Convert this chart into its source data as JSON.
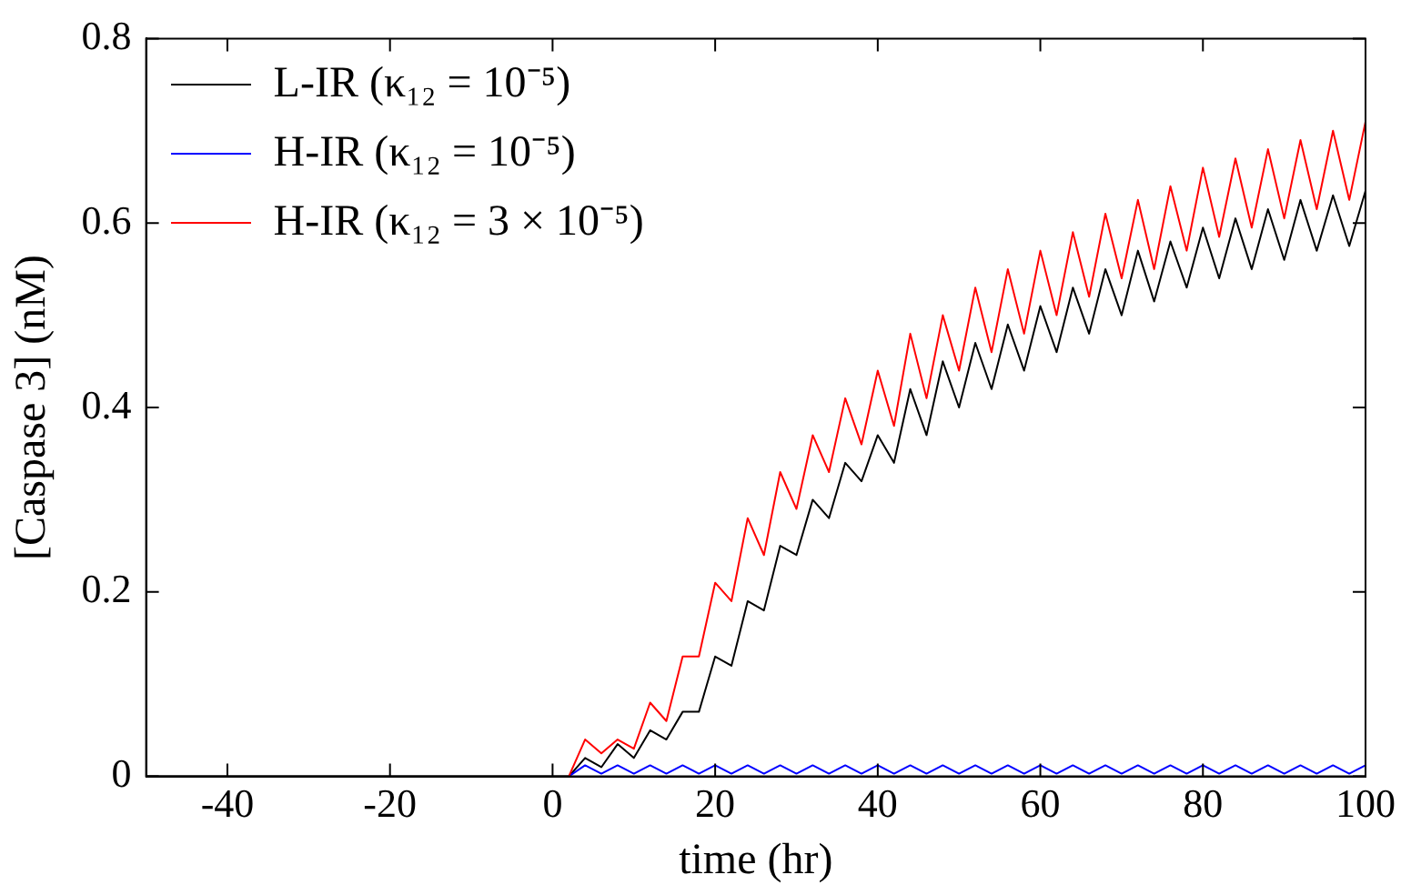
{
  "chart_data": {
    "type": "line",
    "xlabel": "time (hr)",
    "ylabel": "[Caspase 3] (nM)",
    "x": [
      -50,
      0,
      2,
      4,
      6,
      8,
      10,
      12,
      14,
      16,
      18,
      20,
      22,
      24,
      26,
      28,
      30,
      32,
      34,
      36,
      38,
      40,
      42,
      44,
      46,
      48,
      50,
      52,
      54,
      56,
      58,
      60,
      62,
      64,
      66,
      68,
      70,
      72,
      74,
      76,
      78,
      80,
      82,
      84,
      86,
      88,
      90,
      92,
      94,
      96,
      98,
      100
    ],
    "series": [
      {
        "name": "L-IR (κ₁₂ = 10⁻⁵)",
        "color": "#000000",
        "values": [
          0,
          0,
          0,
          0.02,
          0.01,
          0.035,
          0.02,
          0.05,
          0.04,
          0.07,
          0.07,
          0.13,
          0.12,
          0.19,
          0.18,
          0.25,
          0.24,
          0.3,
          0.28,
          0.34,
          0.32,
          0.37,
          0.34,
          0.42,
          0.37,
          0.45,
          0.4,
          0.47,
          0.42,
          0.49,
          0.44,
          0.51,
          0.46,
          0.53,
          0.48,
          0.55,
          0.5,
          0.57,
          0.515,
          0.58,
          0.53,
          0.595,
          0.54,
          0.605,
          0.55,
          0.615,
          0.56,
          0.625,
          0.57,
          0.63,
          0.575,
          0.635
        ]
      },
      {
        "name": "H-IR (κ₁₂ = 10⁻⁵)",
        "color": "#0000ff",
        "values": [
          null,
          null,
          0,
          0.012,
          0.003,
          0.012,
          0.003,
          0.012,
          0.003,
          0.012,
          0.003,
          0.012,
          0.003,
          0.012,
          0.003,
          0.012,
          0.003,
          0.012,
          0.003,
          0.012,
          0.003,
          0.012,
          0.003,
          0.012,
          0.003,
          0.012,
          0.003,
          0.012,
          0.003,
          0.012,
          0.003,
          0.012,
          0.003,
          0.012,
          0.003,
          0.012,
          0.003,
          0.012,
          0.003,
          0.012,
          0.003,
          0.012,
          0.003,
          0.012,
          0.003,
          0.012,
          0.003,
          0.012,
          0.003,
          0.012,
          0.003,
          0.012
        ]
      },
      {
        "name": "H-IR (κ₁₂ = 3 × 10⁻⁵)",
        "color": "#ff0000",
        "values": [
          null,
          null,
          0,
          0.04,
          0.025,
          0.04,
          0.03,
          0.08,
          0.06,
          0.13,
          0.13,
          0.21,
          0.19,
          0.28,
          0.24,
          0.33,
          0.29,
          0.37,
          0.33,
          0.41,
          0.36,
          0.44,
          0.38,
          0.48,
          0.41,
          0.5,
          0.44,
          0.53,
          0.46,
          0.55,
          0.48,
          0.57,
          0.5,
          0.59,
          0.52,
          0.61,
          0.54,
          0.625,
          0.55,
          0.64,
          0.57,
          0.66,
          0.585,
          0.67,
          0.595,
          0.68,
          0.605,
          0.69,
          0.615,
          0.7,
          0.625,
          0.71
        ]
      }
    ],
    "xlim": [
      -50,
      100
    ],
    "xticks": [
      -40,
      -20,
      0,
      20,
      40,
      60,
      80,
      100
    ],
    "ylim": [
      0,
      0.8
    ],
    "yticks": [
      0,
      0.2,
      0.4,
      0.6,
      0.8
    ],
    "grid": false,
    "legend": "top left",
    "marker": "none",
    "line_style": "solid"
  }
}
